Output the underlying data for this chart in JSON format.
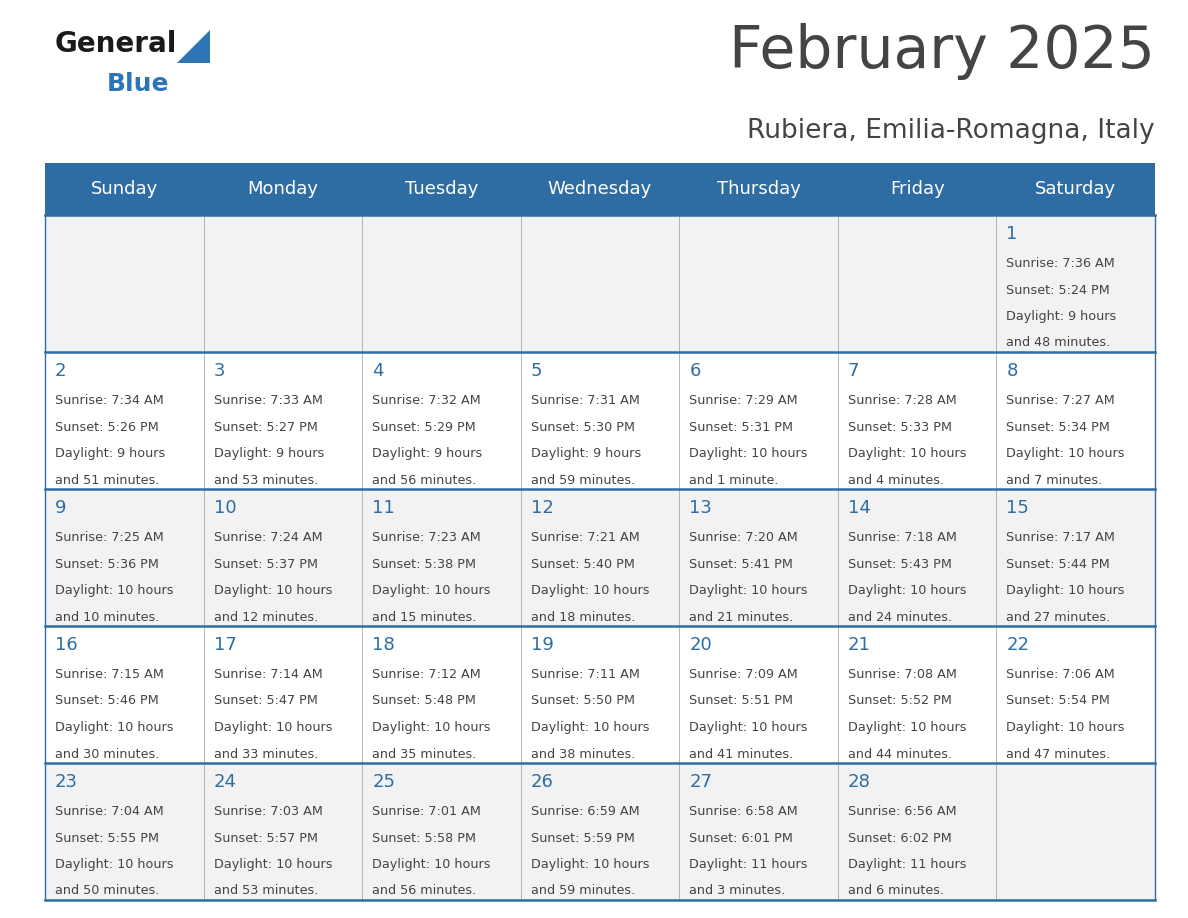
{
  "title": "February 2025",
  "subtitle": "Rubiera, Emilia-Romagna, Italy",
  "days_of_week": [
    "Sunday",
    "Monday",
    "Tuesday",
    "Wednesday",
    "Thursday",
    "Friday",
    "Saturday"
  ],
  "header_bg": "#2E6DA4",
  "header_text": "#FFFFFF",
  "cell_bg_row0": "#F2F2F2",
  "cell_bg_row1": "#FFFFFF",
  "cell_bg_row2": "#F2F2F2",
  "cell_bg_row3": "#FFFFFF",
  "cell_bg_row4": "#F2F2F2",
  "day_number_color": "#2E6DA4",
  "text_color": "#444444",
  "grid_color": "#2E6DA4",
  "logo_general_color": "#1a1a1a",
  "logo_blue_color": "#2E75B6",
  "calendar_data": [
    {
      "day": 1,
      "week_row": 0,
      "col": 6,
      "sunrise": "7:36 AM",
      "sunset": "5:24 PM",
      "daylight_line1": "Daylight: 9 hours",
      "daylight_line2": "and 48 minutes."
    },
    {
      "day": 2,
      "week_row": 1,
      "col": 0,
      "sunrise": "7:34 AM",
      "sunset": "5:26 PM",
      "daylight_line1": "Daylight: 9 hours",
      "daylight_line2": "and 51 minutes."
    },
    {
      "day": 3,
      "week_row": 1,
      "col": 1,
      "sunrise": "7:33 AM",
      "sunset": "5:27 PM",
      "daylight_line1": "Daylight: 9 hours",
      "daylight_line2": "and 53 minutes."
    },
    {
      "day": 4,
      "week_row": 1,
      "col": 2,
      "sunrise": "7:32 AM",
      "sunset": "5:29 PM",
      "daylight_line1": "Daylight: 9 hours",
      "daylight_line2": "and 56 minutes."
    },
    {
      "day": 5,
      "week_row": 1,
      "col": 3,
      "sunrise": "7:31 AM",
      "sunset": "5:30 PM",
      "daylight_line1": "Daylight: 9 hours",
      "daylight_line2": "and 59 minutes."
    },
    {
      "day": 6,
      "week_row": 1,
      "col": 4,
      "sunrise": "7:29 AM",
      "sunset": "5:31 PM",
      "daylight_line1": "Daylight: 10 hours",
      "daylight_line2": "and 1 minute."
    },
    {
      "day": 7,
      "week_row": 1,
      "col": 5,
      "sunrise": "7:28 AM",
      "sunset": "5:33 PM",
      "daylight_line1": "Daylight: 10 hours",
      "daylight_line2": "and 4 minutes."
    },
    {
      "day": 8,
      "week_row": 1,
      "col": 6,
      "sunrise": "7:27 AM",
      "sunset": "5:34 PM",
      "daylight_line1": "Daylight: 10 hours",
      "daylight_line2": "and 7 minutes."
    },
    {
      "day": 9,
      "week_row": 2,
      "col": 0,
      "sunrise": "7:25 AM",
      "sunset": "5:36 PM",
      "daylight_line1": "Daylight: 10 hours",
      "daylight_line2": "and 10 minutes."
    },
    {
      "day": 10,
      "week_row": 2,
      "col": 1,
      "sunrise": "7:24 AM",
      "sunset": "5:37 PM",
      "daylight_line1": "Daylight: 10 hours",
      "daylight_line2": "and 12 minutes."
    },
    {
      "day": 11,
      "week_row": 2,
      "col": 2,
      "sunrise": "7:23 AM",
      "sunset": "5:38 PM",
      "daylight_line1": "Daylight: 10 hours",
      "daylight_line2": "and 15 minutes."
    },
    {
      "day": 12,
      "week_row": 2,
      "col": 3,
      "sunrise": "7:21 AM",
      "sunset": "5:40 PM",
      "daylight_line1": "Daylight: 10 hours",
      "daylight_line2": "and 18 minutes."
    },
    {
      "day": 13,
      "week_row": 2,
      "col": 4,
      "sunrise": "7:20 AM",
      "sunset": "5:41 PM",
      "daylight_line1": "Daylight: 10 hours",
      "daylight_line2": "and 21 minutes."
    },
    {
      "day": 14,
      "week_row": 2,
      "col": 5,
      "sunrise": "7:18 AM",
      "sunset": "5:43 PM",
      "daylight_line1": "Daylight: 10 hours",
      "daylight_line2": "and 24 minutes."
    },
    {
      "day": 15,
      "week_row": 2,
      "col": 6,
      "sunrise": "7:17 AM",
      "sunset": "5:44 PM",
      "daylight_line1": "Daylight: 10 hours",
      "daylight_line2": "and 27 minutes."
    },
    {
      "day": 16,
      "week_row": 3,
      "col": 0,
      "sunrise": "7:15 AM",
      "sunset": "5:46 PM",
      "daylight_line1": "Daylight: 10 hours",
      "daylight_line2": "and 30 minutes."
    },
    {
      "day": 17,
      "week_row": 3,
      "col": 1,
      "sunrise": "7:14 AM",
      "sunset": "5:47 PM",
      "daylight_line1": "Daylight: 10 hours",
      "daylight_line2": "and 33 minutes."
    },
    {
      "day": 18,
      "week_row": 3,
      "col": 2,
      "sunrise": "7:12 AM",
      "sunset": "5:48 PM",
      "daylight_line1": "Daylight: 10 hours",
      "daylight_line2": "and 35 minutes."
    },
    {
      "day": 19,
      "week_row": 3,
      "col": 3,
      "sunrise": "7:11 AM",
      "sunset": "5:50 PM",
      "daylight_line1": "Daylight: 10 hours",
      "daylight_line2": "and 38 minutes."
    },
    {
      "day": 20,
      "week_row": 3,
      "col": 4,
      "sunrise": "7:09 AM",
      "sunset": "5:51 PM",
      "daylight_line1": "Daylight: 10 hours",
      "daylight_line2": "and 41 minutes."
    },
    {
      "day": 21,
      "week_row": 3,
      "col": 5,
      "sunrise": "7:08 AM",
      "sunset": "5:52 PM",
      "daylight_line1": "Daylight: 10 hours",
      "daylight_line2": "and 44 minutes."
    },
    {
      "day": 22,
      "week_row": 3,
      "col": 6,
      "sunrise": "7:06 AM",
      "sunset": "5:54 PM",
      "daylight_line1": "Daylight: 10 hours",
      "daylight_line2": "and 47 minutes."
    },
    {
      "day": 23,
      "week_row": 4,
      "col": 0,
      "sunrise": "7:04 AM",
      "sunset": "5:55 PM",
      "daylight_line1": "Daylight: 10 hours",
      "daylight_line2": "and 50 minutes."
    },
    {
      "day": 24,
      "week_row": 4,
      "col": 1,
      "sunrise": "7:03 AM",
      "sunset": "5:57 PM",
      "daylight_line1": "Daylight: 10 hours",
      "daylight_line2": "and 53 minutes."
    },
    {
      "day": 25,
      "week_row": 4,
      "col": 2,
      "sunrise": "7:01 AM",
      "sunset": "5:58 PM",
      "daylight_line1": "Daylight: 10 hours",
      "daylight_line2": "and 56 minutes."
    },
    {
      "day": 26,
      "week_row": 4,
      "col": 3,
      "sunrise": "6:59 AM",
      "sunset": "5:59 PM",
      "daylight_line1": "Daylight: 10 hours",
      "daylight_line2": "and 59 minutes."
    },
    {
      "day": 27,
      "week_row": 4,
      "col": 4,
      "sunrise": "6:58 AM",
      "sunset": "6:01 PM",
      "daylight_line1": "Daylight: 11 hours",
      "daylight_line2": "and 3 minutes."
    },
    {
      "day": 28,
      "week_row": 4,
      "col": 5,
      "sunrise": "6:56 AM",
      "sunset": "6:02 PM",
      "daylight_line1": "Daylight: 11 hours",
      "daylight_line2": "and 6 minutes."
    }
  ]
}
